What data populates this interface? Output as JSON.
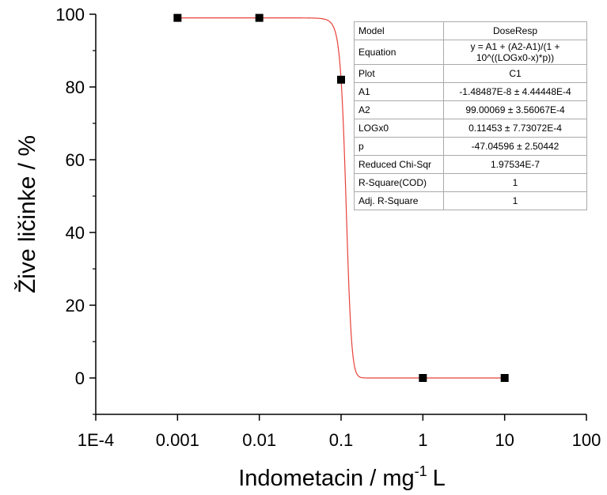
{
  "chart_data": {
    "type": "scatter",
    "xlabel": "Indometacin / mg",
    "xlabel_sup": "-1",
    "xlabel_unit": "L",
    "ylabel": "Žive ličinke / %",
    "x_scale": "log",
    "xlim": [
      0.0001,
      100
    ],
    "ylim": [
      -10,
      100
    ],
    "x_tick_labels": [
      "1E-4",
      "0.001",
      "0.01",
      "0.1",
      "1",
      "10",
      "100"
    ],
    "x_tick_values": [
      0.0001,
      0.001,
      0.01,
      0.1,
      1,
      10,
      100
    ],
    "y_tick_labels": [
      "0",
      "20",
      "40",
      "60",
      "80",
      "100"
    ],
    "y_tick_values": [
      0,
      20,
      40,
      60,
      80,
      100
    ],
    "series": [
      {
        "marker": "square",
        "color": "#000000",
        "x": [
          0.001,
          0.01,
          0.1,
          1,
          10
        ],
        "y": [
          99,
          99,
          82,
          0,
          0
        ]
      }
    ],
    "fit": {
      "model": "DoseResp",
      "color": "#e8413a",
      "A1": -1.48487e-08,
      "A2": 99.00069,
      "LOGx0": 0.11453,
      "p": -47.04596
    },
    "fit_table": [
      {
        "key": "Model",
        "value": "DoseResp"
      },
      {
        "key": "Equation",
        "value": "y = A1 + (A2-A1)/(1 + 10^((LOGx0-x)*p))"
      },
      {
        "key": "Plot",
        "value": "C1"
      },
      {
        "key": "A1",
        "value": "-1.48487E-8 ± 4.44448E-4"
      },
      {
        "key": "A2",
        "value": "99.00069 ± 3.56067E-4"
      },
      {
        "key": "LOGx0",
        "value": "0.11453 ± 7.73072E-4"
      },
      {
        "key": "p",
        "value": "-47.04596 ± 2.50442"
      },
      {
        "key": "Reduced Chi-Sqr",
        "value": "1.97534E-7"
      },
      {
        "key": "R-Square(COD)",
        "value": "1"
      },
      {
        "key": "Adj. R-Square",
        "value": "1"
      }
    ],
    "grid": false,
    "legend": "none"
  }
}
